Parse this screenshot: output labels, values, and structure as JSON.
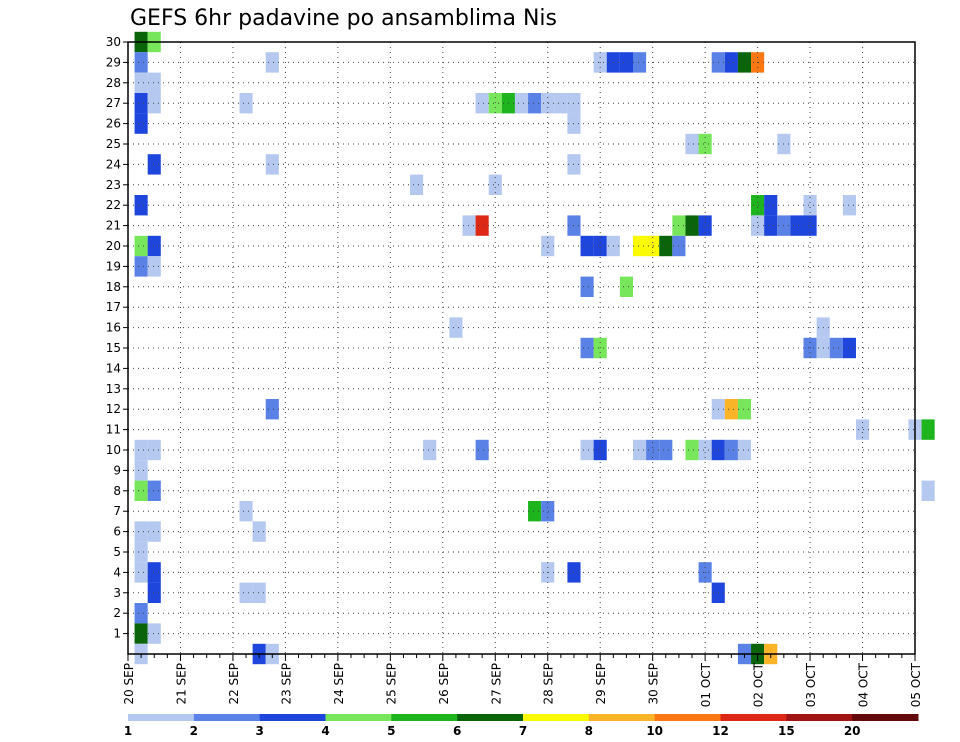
{
  "chart_data": {
    "type": "heatmap",
    "title": "GEFS 6hr padavine po ansamblima Nis",
    "y_ticks": [
      1,
      2,
      3,
      4,
      5,
      6,
      7,
      8,
      9,
      10,
      11,
      12,
      13,
      14,
      15,
      16,
      17,
      18,
      19,
      20,
      21,
      22,
      23,
      24,
      25,
      26,
      27,
      28,
      29,
      30
    ],
    "ylim": [
      0,
      30
    ],
    "x_start": "2023-09-20T00",
    "x_steps": 60,
    "x_step_hours": 6,
    "x_tick_labels": [
      "20 SEP",
      "21 SEP",
      "22 SEP",
      "23 SEP",
      "24 SEP",
      "25 SEP",
      "26 SEP",
      "27 SEP",
      "28 SEP",
      "29 SEP",
      "30 SEP",
      "01 OCT",
      "02 OCT",
      "03 OCT",
      "04 OCT",
      "05 OCT"
    ],
    "grid": true,
    "legend_placement": "bottom",
    "legend_levels": [
      "1",
      "2",
      "3",
      "4",
      "5",
      "6",
      "7",
      "8",
      "10",
      "12",
      "15",
      "20"
    ],
    "legend_colors": [
      "#b4c8f0",
      "#5a82e6",
      "#1e46dc",
      "#78e65a",
      "#1eb41e",
      "#0a640a",
      "#fafa00",
      "#fab428",
      "#fa7814",
      "#dc2814",
      "#a01414",
      "#640a0a"
    ],
    "cells": [
      [
        1,
        30,
        6
      ],
      [
        2,
        30,
        4
      ],
      [
        1,
        29,
        2
      ],
      [
        11,
        29,
        1
      ],
      [
        36,
        29,
        1
      ],
      [
        37,
        29,
        3
      ],
      [
        38,
        29,
        3
      ],
      [
        39,
        29,
        2
      ],
      [
        45,
        29,
        2
      ],
      [
        46,
        29,
        3
      ],
      [
        47,
        29,
        6
      ],
      [
        48,
        29,
        9
      ],
      [
        1,
        28,
        1
      ],
      [
        2,
        28,
        1
      ],
      [
        1,
        27,
        3
      ],
      [
        2,
        27,
        1
      ],
      [
        9,
        27,
        1
      ],
      [
        27,
        27,
        1
      ],
      [
        28,
        27,
        4
      ],
      [
        29,
        27,
        5
      ],
      [
        30,
        27,
        1
      ],
      [
        31,
        27,
        2
      ],
      [
        32,
        27,
        1
      ],
      [
        33,
        27,
        1
      ],
      [
        34,
        27,
        1
      ],
      [
        1,
        26,
        3
      ],
      [
        34,
        26,
        1
      ],
      [
        43,
        25,
        1
      ],
      [
        44,
        25,
        4
      ],
      [
        50,
        25,
        1
      ],
      [
        2,
        24,
        3
      ],
      [
        11,
        24,
        1
      ],
      [
        34,
        24,
        1
      ],
      [
        22,
        23,
        1
      ],
      [
        28,
        23,
        1
      ],
      [
        1,
        22,
        3
      ],
      [
        48,
        22,
        5
      ],
      [
        49,
        22,
        3
      ],
      [
        52,
        22,
        1
      ],
      [
        55,
        22,
        1
      ],
      [
        26,
        21,
        1
      ],
      [
        27,
        21,
        10
      ],
      [
        34,
        21,
        2
      ],
      [
        42,
        21,
        4
      ],
      [
        43,
        21,
        6
      ],
      [
        44,
        21,
        3
      ],
      [
        48,
        21,
        1
      ],
      [
        49,
        21,
        3
      ],
      [
        50,
        21,
        2
      ],
      [
        51,
        21,
        3
      ],
      [
        52,
        21,
        3
      ],
      [
        1,
        20,
        4
      ],
      [
        2,
        20,
        3
      ],
      [
        32,
        20,
        1
      ],
      [
        35,
        20,
        3
      ],
      [
        36,
        20,
        3
      ],
      [
        37,
        20,
        1
      ],
      [
        39,
        20,
        7
      ],
      [
        40,
        20,
        7
      ],
      [
        41,
        20,
        6
      ],
      [
        42,
        20,
        2
      ],
      [
        1,
        19,
        2
      ],
      [
        2,
        19,
        1
      ],
      [
        35,
        18,
        2
      ],
      [
        38,
        18,
        4
      ],
      [
        25,
        16,
        1
      ],
      [
        53,
        16,
        1
      ],
      [
        35,
        15,
        2
      ],
      [
        36,
        15,
        4
      ],
      [
        52,
        15,
        2
      ],
      [
        53,
        15,
        1
      ],
      [
        54,
        15,
        2
      ],
      [
        55,
        15,
        3
      ],
      [
        11,
        12,
        2
      ],
      [
        45,
        12,
        1
      ],
      [
        46,
        12,
        8
      ],
      [
        47,
        12,
        4
      ],
      [
        56,
        11,
        1
      ],
      [
        60,
        11,
        1
      ],
      [
        61,
        11,
        5
      ],
      [
        1,
        10,
        1
      ],
      [
        2,
        10,
        1
      ],
      [
        23,
        10,
        1
      ],
      [
        27,
        10,
        2
      ],
      [
        35,
        10,
        1
      ],
      [
        36,
        10,
        3
      ],
      [
        39,
        10,
        1
      ],
      [
        40,
        10,
        2
      ],
      [
        41,
        10,
        2
      ],
      [
        43,
        10,
        4
      ],
      [
        44,
        10,
        1
      ],
      [
        45,
        10,
        3
      ],
      [
        46,
        10,
        2
      ],
      [
        47,
        10,
        1
      ],
      [
        1,
        9,
        1
      ],
      [
        1,
        8,
        4
      ],
      [
        2,
        8,
        2
      ],
      [
        61,
        8,
        1
      ],
      [
        9,
        7,
        1
      ],
      [
        31,
        7,
        5
      ],
      [
        32,
        7,
        2
      ],
      [
        1,
        6,
        1
      ],
      [
        2,
        6,
        1
      ],
      [
        10,
        6,
        1
      ],
      [
        1,
        5,
        1
      ],
      [
        1,
        4,
        1
      ],
      [
        2,
        4,
        3
      ],
      [
        32,
        4,
        1
      ],
      [
        34,
        4,
        3
      ],
      [
        44,
        4,
        2
      ],
      [
        2,
        3,
        3
      ],
      [
        9,
        3,
        1
      ],
      [
        10,
        3,
        1
      ],
      [
        45,
        3,
        3
      ],
      [
        1,
        2,
        2
      ],
      [
        1,
        1,
        6
      ],
      [
        2,
        1,
        1
      ],
      [
        1,
        0,
        1
      ],
      [
        10,
        0,
        3
      ],
      [
        11,
        0,
        1
      ],
      [
        47,
        0,
        2
      ],
      [
        48,
        0,
        6
      ],
      [
        49,
        0,
        8
      ]
    ]
  }
}
